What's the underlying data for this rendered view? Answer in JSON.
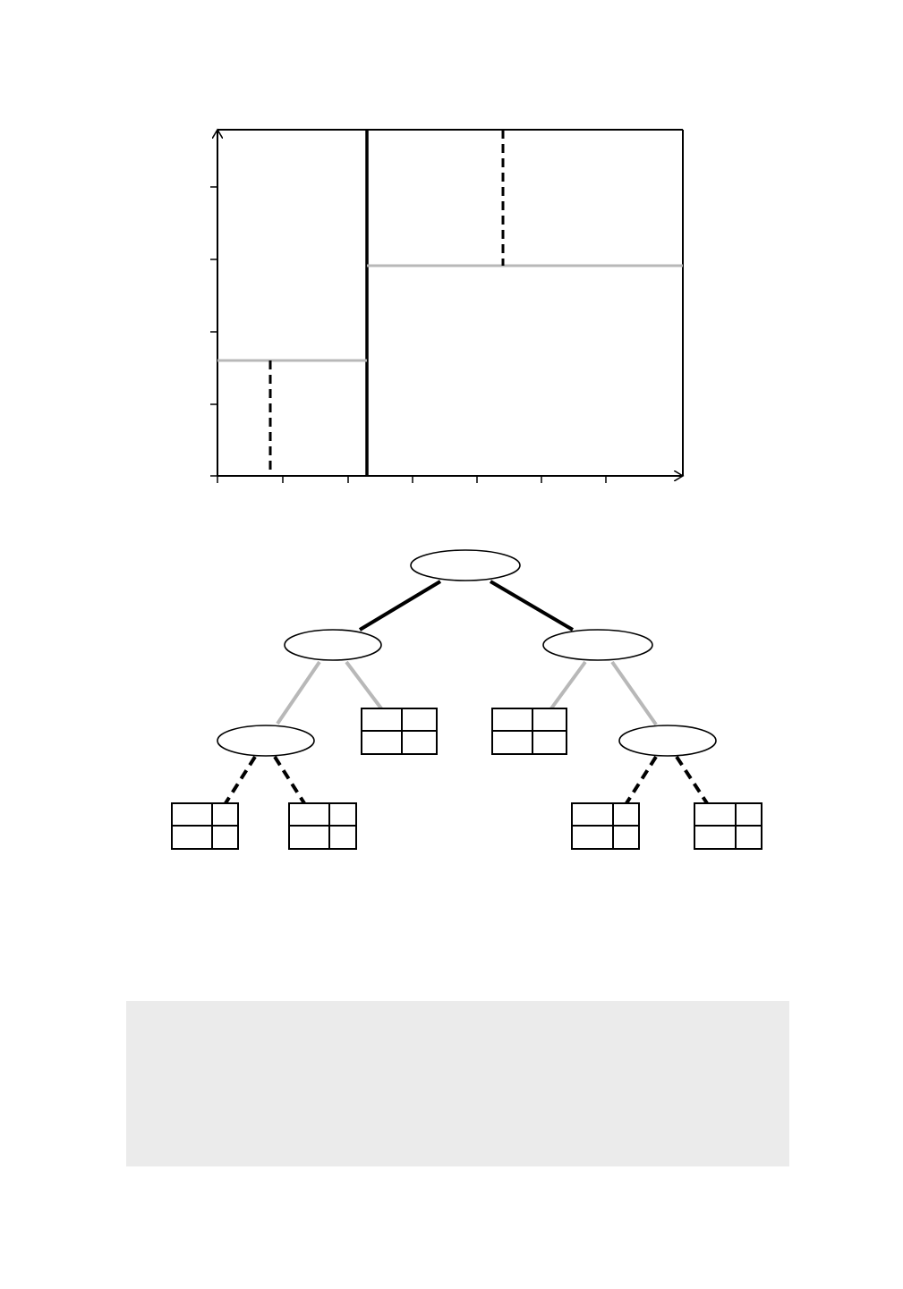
{
  "figure": {
    "partition_plot": {
      "x_ticks": 7,
      "y_ticks": 5,
      "x_axis_arrow": true,
      "y_axis_arrow": true,
      "splits": [
        {
          "level": 1,
          "orientation": "vertical",
          "style": "solid-black"
        },
        {
          "level": 2,
          "orientation": "horizontal",
          "region": "left",
          "style": "solid-gray"
        },
        {
          "level": 2,
          "orientation": "horizontal",
          "region": "right",
          "style": "solid-gray"
        },
        {
          "level": 3,
          "orientation": "vertical",
          "region": "left-bottom",
          "style": "dashed-black"
        },
        {
          "level": 3,
          "orientation": "vertical",
          "region": "right-top",
          "style": "dashed-black"
        }
      ]
    },
    "tree": {
      "root": {
        "kind": "node",
        "edge_style": "solid-black"
      },
      "level_2": [
        "node",
        "node"
      ],
      "level_2_edge_style": "solid-gray",
      "leaves_level_3": 2,
      "level_3_nodes": 2,
      "level_3_edge_style": "dashed-black",
      "leaves_level_4": 4
    },
    "colors": {
      "ink": "#000000",
      "gray_line": "#b8b8b8",
      "caption_background": "#ebebeb"
    }
  },
  "caption": {
    "text": ""
  }
}
